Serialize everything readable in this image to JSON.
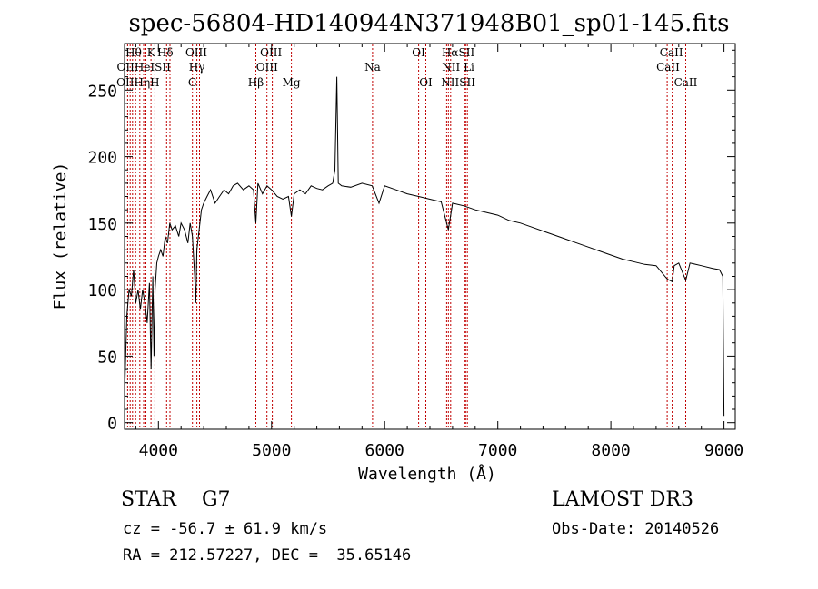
{
  "chart_data": {
    "type": "line",
    "title": "spec-56804-HD140944N371948B01_sp01-145.fits",
    "xlabel": "Wavelength (Å)",
    "ylabel": "Flux (relative)",
    "xlim": [
      3700,
      9100
    ],
    "ylim": [
      -5,
      285
    ],
    "xticks": [
      4000,
      5000,
      6000,
      7000,
      8000,
      9000
    ],
    "yticks": [
      0,
      50,
      100,
      150,
      200,
      250
    ],
    "xtick_labels": [
      "4000",
      "5000",
      "6000",
      "7000",
      "8000",
      "9000"
    ],
    "ytick_labels": [
      "0",
      "50",
      "100",
      "150",
      "200",
      "250"
    ],
    "grid": false,
    "series": [
      {
        "x": [
          3700,
          3720,
          3740,
          3760,
          3780,
          3800,
          3820,
          3840,
          3860,
          3880,
          3900,
          3920,
          3935,
          3950,
          3960,
          3970,
          3985,
          4000,
          4020,
          4040,
          4060,
          4080,
          4100,
          4120,
          4150,
          4180,
          4200,
          4230,
          4260,
          4280,
          4300,
          4320,
          4330,
          4340,
          4360,
          4380,
          4400,
          4430,
          4460,
          4500,
          4540,
          4580,
          4620,
          4660,
          4700,
          4750,
          4800,
          4840,
          4861,
          4880,
          4920,
          4960,
          5000,
          5050,
          5100,
          5150,
          5175,
          5200,
          5250,
          5300,
          5350,
          5400,
          5450,
          5500,
          5540,
          5560,
          5577,
          5590,
          5620,
          5700,
          5800,
          5890,
          5950,
          6000,
          6100,
          6200,
          6300,
          6400,
          6500,
          6563,
          6600,
          6700,
          6800,
          6900,
          7000,
          7100,
          7200,
          7300,
          7400,
          7500,
          7600,
          7700,
          7800,
          7900,
          8000,
          8100,
          8200,
          8300,
          8400,
          8498,
          8542,
          8560,
          8600,
          8662,
          8700,
          8800,
          8900,
          8960,
          8990,
          9000
        ],
        "y": [
          20,
          80,
          100,
          95,
          115,
          90,
          100,
          85,
          100,
          90,
          75,
          105,
          40,
          110,
          50,
          100,
          120,
          125,
          130,
          125,
          140,
          135,
          150,
          145,
          148,
          140,
          150,
          145,
          135,
          150,
          140,
          110,
          90,
          130,
          145,
          160,
          165,
          170,
          175,
          165,
          170,
          175,
          172,
          178,
          180,
          175,
          178,
          175,
          150,
          180,
          172,
          178,
          175,
          170,
          168,
          170,
          155,
          172,
          175,
          172,
          178,
          176,
          175,
          178,
          180,
          190,
          260,
          180,
          178,
          177,
          180,
          178,
          165,
          178,
          175,
          172,
          170,
          168,
          166,
          145,
          165,
          163,
          160,
          158,
          156,
          152,
          150,
          147,
          144,
          141,
          138,
          135,
          132,
          129,
          126,
          123,
          121,
          119,
          118,
          108,
          106,
          118,
          120,
          107,
          120,
          118,
          116,
          115,
          110,
          5
        ]
      }
    ],
    "line_marks": [
      {
        "x": 3727,
        "label": "OII"
      },
      {
        "x": 3750,
        "label": "Hθ"
      },
      {
        "x": 3771,
        "label": "Hη"
      },
      {
        "x": 3798,
        "label": "Hη"
      },
      {
        "x": 3835,
        "label": "Hη"
      },
      {
        "x": 3869,
        "label": "HeI"
      },
      {
        "x": 3889,
        "label": "HeI"
      },
      {
        "x": 3934,
        "label": "K"
      },
      {
        "x": 3968,
        "label": "H"
      },
      {
        "x": 4072,
        "label": "SII"
      },
      {
        "x": 4102,
        "label": "Hδ"
      },
      {
        "x": 4300,
        "label": "G"
      },
      {
        "x": 4340,
        "label": "Hγ"
      },
      {
        "x": 4363,
        "label": "OIII"
      },
      {
        "x": 4861,
        "label": "Hβ"
      },
      {
        "x": 4959,
        "label": "OIII"
      },
      {
        "x": 5007,
        "label": "OIII"
      },
      {
        "x": 5175,
        "label": "Mg"
      },
      {
        "x": 5893,
        "label": "Na"
      },
      {
        "x": 6300,
        "label": "OI"
      },
      {
        "x": 6364,
        "label": "OI"
      },
      {
        "x": 6548,
        "label": "NII"
      },
      {
        "x": 6563,
        "label": "Hα"
      },
      {
        "x": 6583,
        "label": "NII"
      },
      {
        "x": 6707,
        "label": "Li"
      },
      {
        "x": 6716,
        "label": "SII"
      },
      {
        "x": 6731,
        "label": "SII"
      },
      {
        "x": 8498,
        "label": "CaII"
      },
      {
        "x": 8542,
        "label": "CaII"
      },
      {
        "x": 8662,
        "label": "CaII"
      }
    ],
    "line_label_rows": [
      [
        {
          "text": "Hθ",
          "x": 3780
        },
        {
          "text": "K",
          "x": 3935
        },
        {
          "text": "Hδ",
          "x": 4060
        },
        {
          "text": "OIII",
          "x": 4335
        },
        {
          "text": "OIII",
          "x": 4995
        },
        {
          "text": "OI",
          "x": 6300
        },
        {
          "text": "HαSII",
          "x": 6650
        },
        {
          "text": "CaII",
          "x": 8535
        }
      ],
      [
        {
          "text": "OIIHeISII",
          "x": 3870
        },
        {
          "text": "Hγ",
          "x": 4340
        },
        {
          "text": "OIII",
          "x": 4960
        },
        {
          "text": "Na",
          "x": 5893
        },
        {
          "text": "NII Li",
          "x": 6650
        },
        {
          "text": "CaII",
          "x": 8505
        }
      ],
      [
        {
          "text": "OIIHηH",
          "x": 3820
        },
        {
          "text": "G",
          "x": 4300
        },
        {
          "text": "Hβ",
          "x": 4861
        },
        {
          "text": "Mg",
          "x": 5175
        },
        {
          "text": "OI",
          "x": 6364
        },
        {
          "text": "NIISII",
          "x": 6650
        },
        {
          "text": "CaII",
          "x": 8662
        }
      ]
    ]
  },
  "info": {
    "class": "STAR    G7",
    "survey": "LAMOST DR3",
    "cz": "cz = -56.7 ± 61.9 km/s",
    "obs_date": "Obs-Date: 20140526",
    "coords": "RA = 212.57227, DEC =  35.65146"
  }
}
